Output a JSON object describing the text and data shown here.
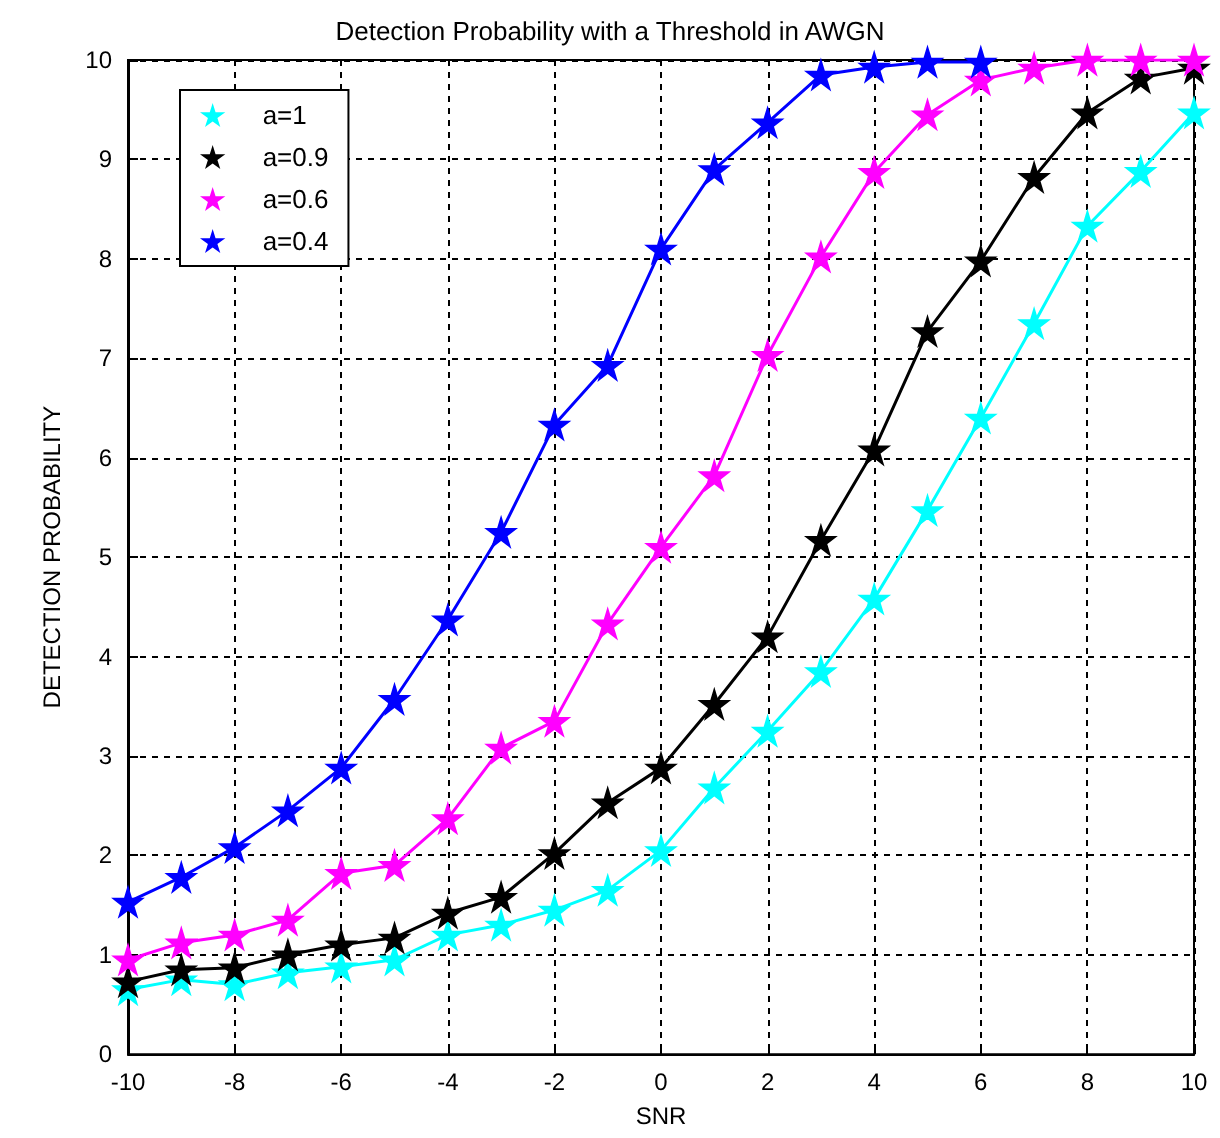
{
  "chart_data": {
    "type": "line",
    "title": "Detection Probability with a Threshold in AWGN",
    "xlabel": "SNR",
    "ylabel": "DETECTION PROBABILITY",
    "x": [
      -10,
      -9,
      -8,
      -7,
      -6,
      -5,
      -4,
      -3,
      -2,
      -1,
      0,
      1,
      2,
      3,
      4,
      5,
      6,
      7,
      8,
      9,
      10
    ],
    "series": [
      {
        "name": "a=1",
        "color": "#00ffff",
        "values": [
          0.65,
          0.75,
          0.7,
          0.82,
          0.88,
          0.95,
          1.2,
          1.3,
          1.45,
          1.65,
          2.05,
          2.68,
          3.25,
          3.85,
          4.58,
          5.47,
          6.4,
          7.35,
          8.33,
          8.88,
          9.47
        ]
      },
      {
        "name": "a=0.9",
        "color": "#000000",
        "values": [
          0.73,
          0.85,
          0.87,
          1.0,
          1.1,
          1.17,
          1.42,
          1.58,
          2.02,
          2.53,
          2.88,
          3.52,
          4.2,
          5.17,
          6.08,
          7.27,
          7.98,
          8.82,
          9.47,
          9.82,
          9.92
        ]
      },
      {
        "name": "a=0.6",
        "color": "#ff00ff",
        "values": [
          0.95,
          1.12,
          1.2,
          1.35,
          1.82,
          1.9,
          2.37,
          3.08,
          3.35,
          4.33,
          5.1,
          5.82,
          7.03,
          8.02,
          8.87,
          9.45,
          9.8,
          9.92,
          10,
          10,
          10
        ]
      },
      {
        "name": "a=0.4",
        "color": "#0000ff",
        "values": [
          1.53,
          1.78,
          2.08,
          2.45,
          2.88,
          3.57,
          4.37,
          5.25,
          6.33,
          6.93,
          8.1,
          8.9,
          9.37,
          9.85,
          9.93,
          9.98,
          9.98,
          null,
          null,
          null,
          null
        ]
      }
    ],
    "xlim": [
      -10,
      10
    ],
    "xticks": [
      -10,
      -8,
      -6,
      -4,
      -2,
      0,
      2,
      4,
      6,
      8,
      10
    ],
    "ylim": [
      0,
      10
    ],
    "yticks": [
      0,
      1,
      2,
      3,
      4,
      5,
      6,
      7,
      8,
      9,
      10
    ],
    "grid": true,
    "legend": "top left",
    "marker": "star",
    "line_style": "solid"
  }
}
